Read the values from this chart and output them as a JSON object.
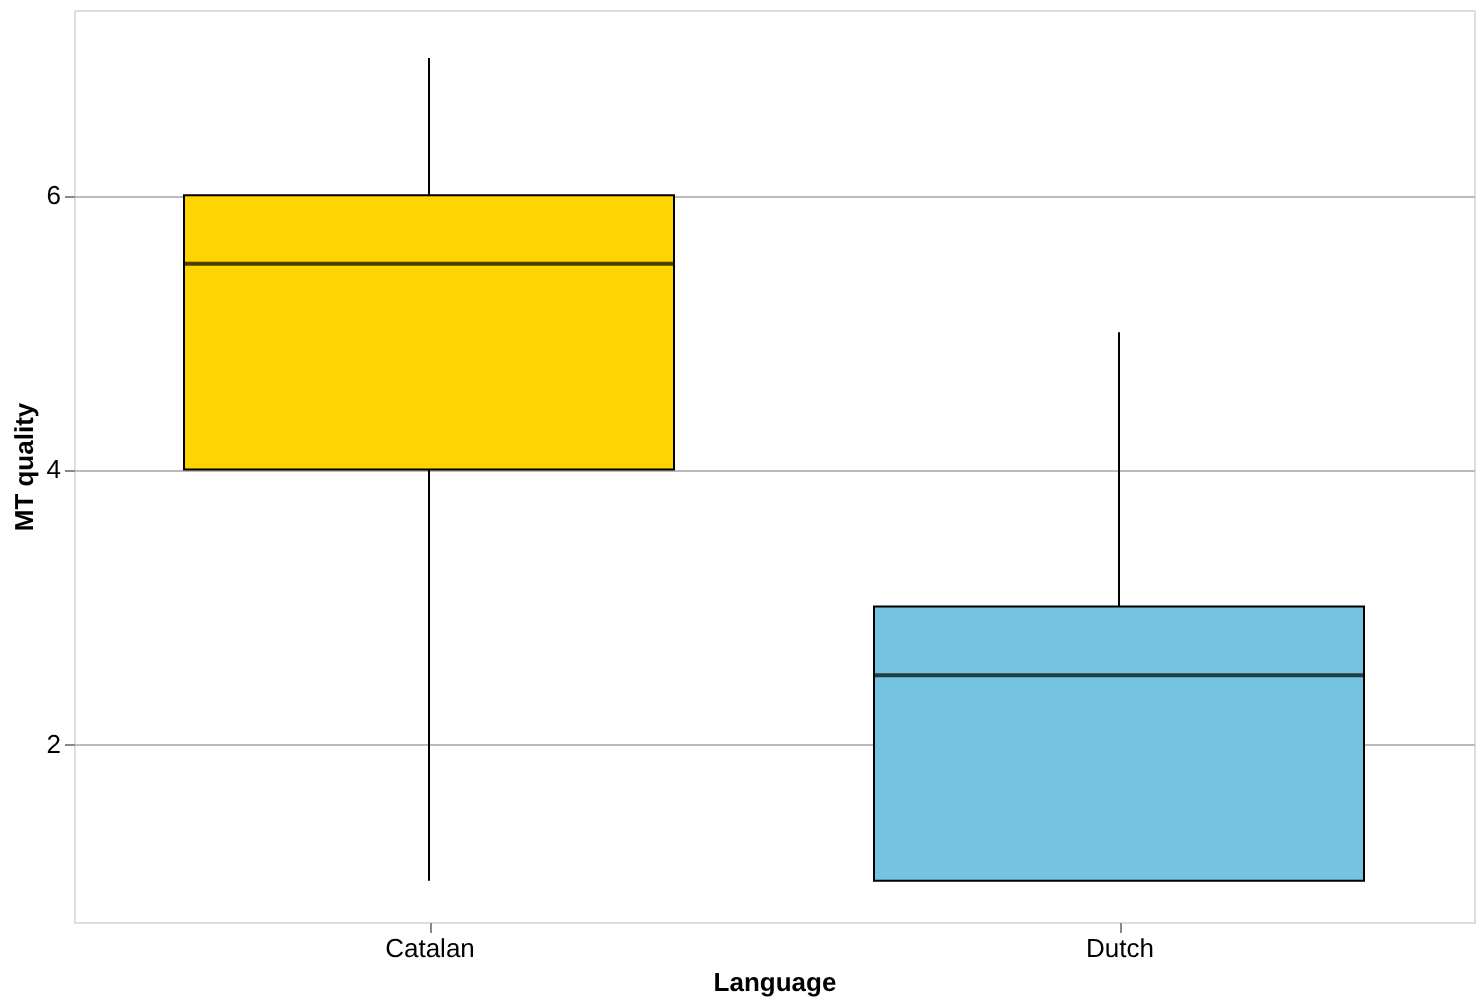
{
  "chart_data": {
    "type": "box",
    "xlabel": "Language",
    "ylabel": "MT quality",
    "categories": [
      "Catalan",
      "Dutch"
    ],
    "colors": [
      "#ffd400",
      "#74c3e1"
    ],
    "boxes": [
      {
        "low": 1,
        "q1": 4,
        "median": 5.5,
        "q3": 6,
        "high": 7
      },
      {
        "low": 1,
        "q1": 1,
        "median": 2.5,
        "q3": 3,
        "high": 5
      }
    ],
    "ylim": [
      0.7,
      7.35
    ],
    "yticks": [
      2,
      4,
      6
    ],
    "grid": "y",
    "legend": false
  }
}
